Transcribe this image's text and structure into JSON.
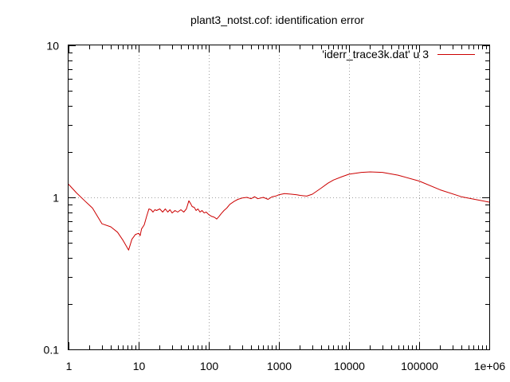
{
  "chart_data": {
    "type": "line",
    "title": "plant3_notst.cof: identification error",
    "xlabel": "",
    "ylabel": "",
    "x_scale": "log",
    "y_scale": "log",
    "xlim": [
      1,
      1000000
    ],
    "ylim": [
      0.1,
      10
    ],
    "grid": true,
    "legend_position": "top-right",
    "x_ticks": [
      {
        "value": 1,
        "label": "1"
      },
      {
        "value": 10,
        "label": "10"
      },
      {
        "value": 100,
        "label": "100"
      },
      {
        "value": 1000,
        "label": "1000"
      },
      {
        "value": 10000,
        "label": "10000"
      },
      {
        "value": 100000,
        "label": "100000"
      },
      {
        "value": 1000000,
        "label": "1e+06"
      }
    ],
    "y_ticks": [
      {
        "value": 0.1,
        "label": "0.1"
      },
      {
        "value": 1,
        "label": "1"
      },
      {
        "value": 10,
        "label": "10"
      }
    ],
    "series": [
      {
        "name": "'iderr_trace3k.dat' u 3",
        "color": "#cc0000",
        "x": [
          1,
          1.3,
          1.7,
          2.2,
          3,
          4,
          5,
          6,
          7.2,
          8,
          9,
          10,
          10.5,
          11,
          12,
          13,
          14,
          15,
          16,
          17,
          18,
          20,
          22,
          24,
          26,
          28,
          30,
          33,
          36,
          40,
          44,
          48,
          52,
          55,
          58,
          62,
          66,
          70,
          75,
          80,
          86,
          92,
          100,
          110,
          120,
          130,
          140,
          150,
          165,
          180,
          200,
          230,
          260,
          300,
          350,
          400,
          450,
          500,
          600,
          700,
          800,
          900,
          1000,
          1200,
          1500,
          1800,
          2000,
          2500,
          3000,
          4000,
          5000,
          6000,
          8000,
          10000,
          15000,
          20000,
          30000,
          50000,
          100000,
          200000,
          400000,
          1000000
        ],
        "y": [
          1.22,
          1.07,
          0.95,
          0.85,
          0.67,
          0.64,
          0.59,
          0.52,
          0.45,
          0.53,
          0.57,
          0.58,
          0.56,
          0.62,
          0.66,
          0.75,
          0.84,
          0.83,
          0.8,
          0.83,
          0.82,
          0.84,
          0.8,
          0.84,
          0.8,
          0.83,
          0.79,
          0.82,
          0.8,
          0.83,
          0.8,
          0.84,
          0.95,
          0.91,
          0.87,
          0.86,
          0.82,
          0.84,
          0.8,
          0.82,
          0.79,
          0.8,
          0.77,
          0.75,
          0.74,
          0.72,
          0.75,
          0.78,
          0.82,
          0.85,
          0.9,
          0.94,
          0.97,
          0.99,
          1.0,
          0.98,
          1.01,
          0.98,
          1.0,
          0.97,
          1.01,
          1.02,
          1.04,
          1.06,
          1.05,
          1.04,
          1.03,
          1.02,
          1.05,
          1.15,
          1.24,
          1.3,
          1.37,
          1.42,
          1.46,
          1.47,
          1.46,
          1.4,
          1.28,
          1.12,
          1.01,
          0.93
        ]
      }
    ]
  }
}
